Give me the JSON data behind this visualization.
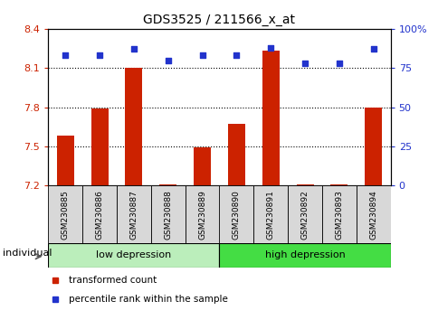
{
  "title": "GDS3525 / 211566_x_at",
  "samples": [
    "GSM230885",
    "GSM230886",
    "GSM230887",
    "GSM230888",
    "GSM230889",
    "GSM230890",
    "GSM230891",
    "GSM230892",
    "GSM230893",
    "GSM230894"
  ],
  "transformed_count": [
    7.58,
    7.79,
    8.1,
    7.21,
    7.49,
    7.67,
    8.23,
    7.21,
    7.21,
    7.8
  ],
  "percentile_rank": [
    83,
    83,
    87,
    80,
    83,
    83,
    88,
    78,
    78,
    87
  ],
  "ylim_left": [
    7.2,
    8.4
  ],
  "ylim_right": [
    0,
    100
  ],
  "yticks_left": [
    7.2,
    7.5,
    7.8,
    8.1,
    8.4
  ],
  "ytick_labels_left": [
    "7.2",
    "7.5",
    "7.8",
    "8.1",
    "8.4"
  ],
  "yticks_right": [
    0,
    25,
    50,
    75,
    100
  ],
  "ytick_labels_right": [
    "0",
    "25",
    "50",
    "75",
    "100%"
  ],
  "bar_color": "#cc2200",
  "dot_color": "#2233cc",
  "groups": [
    {
      "label": "low depression",
      "start": 0,
      "end": 5,
      "color": "#bbeebb"
    },
    {
      "label": "high depression",
      "start": 5,
      "end": 10,
      "color": "#44dd44"
    }
  ],
  "individual_label": "individual",
  "legend_items": [
    {
      "label": "transformed count",
      "color": "#cc2200"
    },
    {
      "label": "percentile rank within the sample",
      "color": "#2233cc"
    }
  ],
  "bar_width": 0.5
}
